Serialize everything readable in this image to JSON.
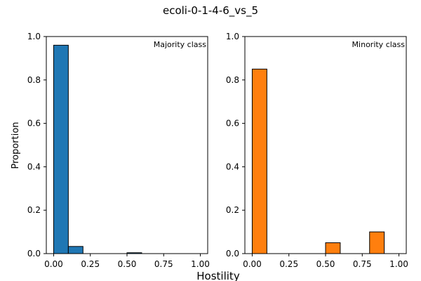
{
  "figure": {
    "suptitle": "ecoli-0-1-4-6_vs_5",
    "shared_xlabel": "Hostility",
    "shared_ylabel": "Proportion"
  },
  "chart_data": [
    {
      "type": "bar",
      "annotation": "Majority class",
      "color": "#1f77b4",
      "edge_color": "#000000",
      "bin_width": 0.1,
      "x": [
        0.0,
        0.1,
        0.5
      ],
      "values": [
        0.96,
        0.033,
        0.004
      ],
      "xlim": [
        -0.05,
        1.05
      ],
      "ylim": [
        0,
        1.0
      ],
      "xticks": [
        0.0,
        0.25,
        0.5,
        0.75,
        1.0
      ],
      "xtick_labels": [
        "0.00",
        "0.25",
        "0.50",
        "0.75",
        "1.00"
      ],
      "yticks": [
        0.0,
        0.2,
        0.4,
        0.6,
        0.8,
        1.0
      ],
      "ytick_labels": [
        "0.0",
        "0.2",
        "0.4",
        "0.6",
        "0.8",
        "1.0"
      ],
      "grid": false
    },
    {
      "type": "bar",
      "annotation": "Minority class",
      "color": "#ff7f0e",
      "edge_color": "#000000",
      "bin_width": 0.1,
      "x": [
        0.0,
        0.5,
        0.8
      ],
      "values": [
        0.85,
        0.05,
        0.1
      ],
      "xlim": [
        -0.05,
        1.05
      ],
      "ylim": [
        0,
        1.0
      ],
      "xticks": [
        0.0,
        0.25,
        0.5,
        0.75,
        1.0
      ],
      "xtick_labels": [
        "0.00",
        "0.25",
        "0.50",
        "0.75",
        "1.00"
      ],
      "yticks": [
        0.0,
        0.2,
        0.4,
        0.6,
        0.8,
        1.0
      ],
      "ytick_labels": [
        "0.0",
        "0.2",
        "0.4",
        "0.6",
        "0.8",
        "1.0"
      ],
      "grid": false
    }
  ]
}
